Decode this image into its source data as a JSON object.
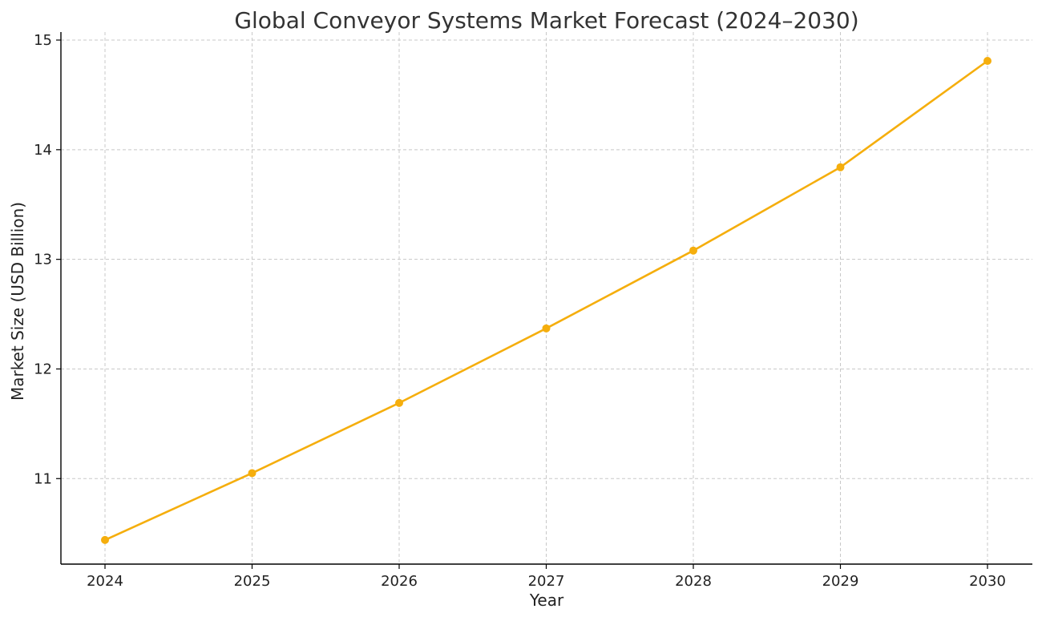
{
  "chart_data": {
    "type": "line",
    "title": "Global Conveyor Systems Market Forecast (2024–2030)",
    "xlabel": "Year",
    "ylabel": "Market Size (USD Billion)",
    "categories": [
      "2024",
      "2025",
      "2026",
      "2027",
      "2028",
      "2029",
      "2030"
    ],
    "series": [
      {
        "values": [
          10.44,
          11.05,
          11.69,
          12.37,
          13.08,
          13.84,
          14.81
        ],
        "color": "#f5ae0d"
      }
    ],
    "ylim": [
      10.22,
      15.0
    ],
    "yticks": [
      11,
      12,
      13,
      14,
      15
    ],
    "grid": true,
    "legend": "none",
    "marker": "circle"
  }
}
